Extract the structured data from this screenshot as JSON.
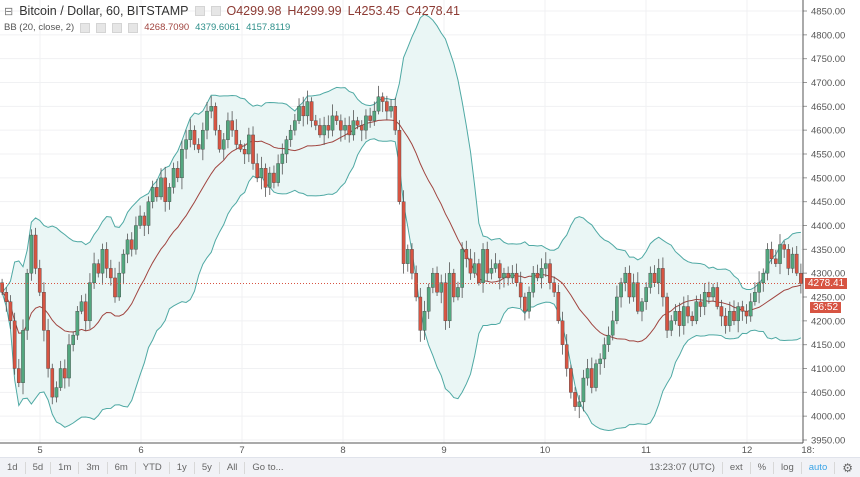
{
  "header": {
    "title": "Bitcoin / Dollar, 60, BITSTAMP",
    "open": "O4299.98",
    "high": "H4299.99",
    "low": "L4253.45",
    "close": "C4278.41"
  },
  "indicator": {
    "label": "BB (20, close, 2)",
    "middle": "4268.7090",
    "upper": "4379.6061",
    "lower": "4157.8119"
  },
  "price_axis": {
    "ticks": [
      "4850.00",
      "4800.00",
      "4750.00",
      "4700.00",
      "4650.00",
      "4600.00",
      "4550.00",
      "4500.00",
      "4450.00",
      "4400.00",
      "4350.00",
      "4300.00",
      "4250.00",
      "4200.00",
      "4150.00",
      "4100.00",
      "4050.00",
      "4000.00",
      "3950.00"
    ],
    "last_price": "4278.41",
    "countdown": "36:52"
  },
  "time_axis": {
    "ticks": [
      "5",
      "6",
      "7",
      "8",
      "9",
      "10",
      "11",
      "12",
      "18:"
    ]
  },
  "toolbar": {
    "ranges": [
      "1d",
      "5d",
      "1m",
      "3m",
      "6m",
      "YTD",
      "1y",
      "5y",
      "All"
    ],
    "goto": "Go to...",
    "clock": "13:23:07 (UTC)",
    "ext": "ext",
    "percent": "%",
    "log": "log",
    "auto": "auto",
    "settings_icon": "gear-icon"
  },
  "colors": {
    "up": "#53a77f",
    "down": "#d75442",
    "band": "#4fa9a4",
    "band_fill": "#eaf6f5",
    "middle": "#a0443f",
    "accent": "#3aa4e6"
  },
  "chart_data": {
    "type": "candlestick",
    "symbol": "BTCUSD",
    "interval": "60",
    "ylim": [
      3950,
      4850
    ],
    "closes": [
      4260,
      4240,
      4200,
      4100,
      4070,
      4180,
      4300,
      4380,
      4310,
      4260,
      4180,
      4100,
      4040,
      4060,
      4100,
      4080,
      4150,
      4170,
      4220,
      4240,
      4200,
      4280,
      4320,
      4300,
      4350,
      4310,
      4290,
      4250,
      4300,
      4340,
      4370,
      4350,
      4400,
      4420,
      4400,
      4450,
      4480,
      4460,
      4500,
      4450,
      4480,
      4520,
      4500,
      4560,
      4580,
      4600,
      4570,
      4560,
      4600,
      4640,
      4650,
      4600,
      4560,
      4580,
      4620,
      4600,
      4570,
      4560,
      4550,
      4590,
      4530,
      4500,
      4520,
      4480,
      4510,
      4490,
      4530,
      4550,
      4580,
      4600,
      4620,
      4650,
      4630,
      4660,
      4620,
      4610,
      4590,
      4610,
      4600,
      4630,
      4620,
      4600,
      4610,
      4590,
      4620,
      4610,
      4600,
      4630,
      4620,
      4640,
      4670,
      4660,
      4640,
      4650,
      4600,
      4450,
      4320,
      4350,
      4300,
      4250,
      4180,
      4220,
      4270,
      4300,
      4260,
      4280,
      4200,
      4300,
      4250,
      4270,
      4350,
      4330,
      4300,
      4320,
      4280,
      4350,
      4300,
      4310,
      4320,
      4290,
      4300,
      4290,
      4300,
      4280,
      4250,
      4220,
      4260,
      4300,
      4290,
      4310,
      4320,
      4280,
      4260,
      4200,
      4150,
      4100,
      4050,
      4020,
      4030,
      4080,
      4100,
      4060,
      4110,
      4120,
      4150,
      4170,
      4200,
      4250,
      4280,
      4300,
      4250,
      4280,
      4220,
      4240,
      4270,
      4300,
      4280,
      4310,
      4250,
      4180,
      4200,
      4220,
      4190,
      4230,
      4210,
      4200,
      4240,
      4230,
      4260,
      4250,
      4270,
      4230,
      4210,
      4190,
      4220,
      4200,
      4230,
      4220,
      4210,
      4240,
      4260,
      4280,
      4300,
      4350,
      4330,
      4320,
      4360,
      4350,
      4310,
      4340,
      4300,
      4278.41
    ],
    "bb": {
      "length": 20,
      "source": "close",
      "mult": 2
    }
  }
}
